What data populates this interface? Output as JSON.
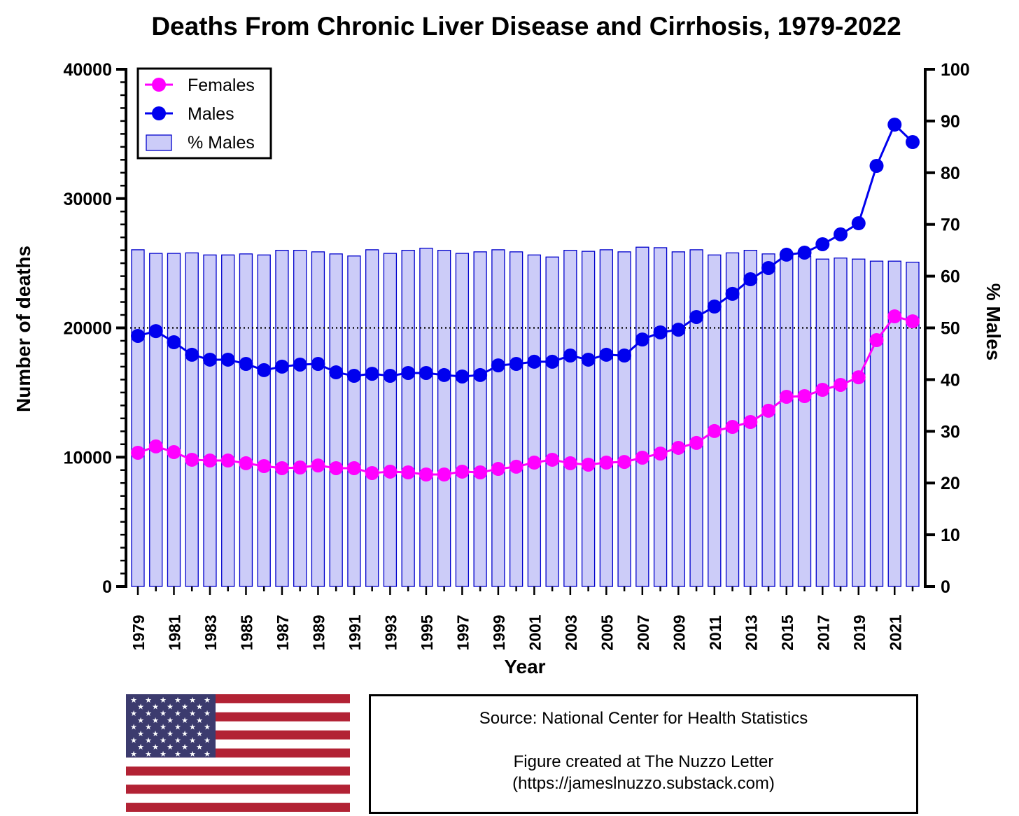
{
  "chart_data": {
    "type": "line+bar",
    "title": "Deaths From Chronic Liver Disease and Cirrhosis, 1979-2022",
    "xlabel": "Year",
    "ylabel": "Number of deaths",
    "y2label": "% Males",
    "ylim": [
      0,
      40000
    ],
    "y2lim": [
      0,
      100
    ],
    "yticks": [
      "0",
      "10000",
      "20000",
      "30000",
      "40000"
    ],
    "y2ticks": [
      "0",
      "10",
      "20",
      "30",
      "40",
      "50",
      "60",
      "70",
      "80",
      "90",
      "100"
    ],
    "reference_line": {
      "axis": "y2",
      "value": 50,
      "style": "dotted"
    },
    "legend_position": "top-left",
    "x": [
      1979,
      1980,
      1981,
      1982,
      1983,
      1984,
      1985,
      1986,
      1987,
      1988,
      1989,
      1990,
      1991,
      1992,
      1993,
      1994,
      1995,
      1996,
      1997,
      1998,
      1999,
      2000,
      2001,
      2002,
      2003,
      2004,
      2005,
      2006,
      2007,
      2008,
      2009,
      2010,
      2011,
      2012,
      2013,
      2014,
      2015,
      2016,
      2017,
      2018,
      2019,
      2020,
      2021,
      2022
    ],
    "xtick_labels": [
      "1979",
      "1981",
      "1983",
      "1985",
      "1987",
      "1989",
      "1991",
      "1993",
      "1995",
      "1997",
      "1999",
      "2001",
      "2003",
      "2005",
      "2007",
      "2009",
      "2011",
      "2013",
      "2015",
      "2017",
      "2019",
      "2021"
    ],
    "series": [
      {
        "name": "Females",
        "type": "line",
        "axis": "y",
        "color": "#ff00ff",
        "values": [
          10340,
          10830,
          10390,
          9800,
          9740,
          9740,
          9530,
          9310,
          9150,
          9200,
          9360,
          9150,
          9150,
          8770,
          8880,
          8820,
          8660,
          8660,
          8880,
          8820,
          9090,
          9260,
          9580,
          9800,
          9530,
          9420,
          9580,
          9630,
          9960,
          10280,
          10720,
          11100,
          12020,
          12340,
          12720,
          13590,
          14670,
          14720,
          15210,
          15590,
          16180,
          19050,
          20890,
          20510
        ]
      },
      {
        "name": "Males",
        "type": "line",
        "axis": "y",
        "color": "#0000ee",
        "values": [
          19380,
          19750,
          18890,
          17920,
          17540,
          17540,
          17210,
          16730,
          17000,
          17160,
          17210,
          16560,
          16290,
          16450,
          16290,
          16510,
          16510,
          16350,
          16240,
          16350,
          17100,
          17210,
          17380,
          17380,
          17860,
          17540,
          17920,
          17860,
          19100,
          19650,
          19860,
          20840,
          21650,
          22630,
          23760,
          24630,
          25660,
          25820,
          26470,
          27230,
          28090,
          32530,
          35720,
          34370
        ]
      },
      {
        "name": "% Males",
        "type": "bar",
        "axis": "y2",
        "color": "#ccccf8",
        "values": [
          65.1,
          64.4,
          64.4,
          64.5,
          64.1,
          64.1,
          64.3,
          64.1,
          65.0,
          65.0,
          64.7,
          64.3,
          63.9,
          65.1,
          64.4,
          65.0,
          65.4,
          65.0,
          64.4,
          64.7,
          65.1,
          64.7,
          64.1,
          63.7,
          65.0,
          64.8,
          65.1,
          64.7,
          65.6,
          65.5,
          64.7,
          65.1,
          64.1,
          64.5,
          65.0,
          64.3,
          64.3,
          63.9,
          63.3,
          63.5,
          63.3,
          62.9,
          62.9,
          62.7
        ]
      }
    ]
  },
  "source": {
    "line1": "Source: National Center for Health Statistics",
    "line2": "Figure created at The Nuzzo Letter",
    "line3": "(https://jameslnuzzo.substack.com)"
  },
  "flag": {
    "name": "united-states-flag",
    "red": "#b22234",
    "blue": "#3c3b6e"
  }
}
